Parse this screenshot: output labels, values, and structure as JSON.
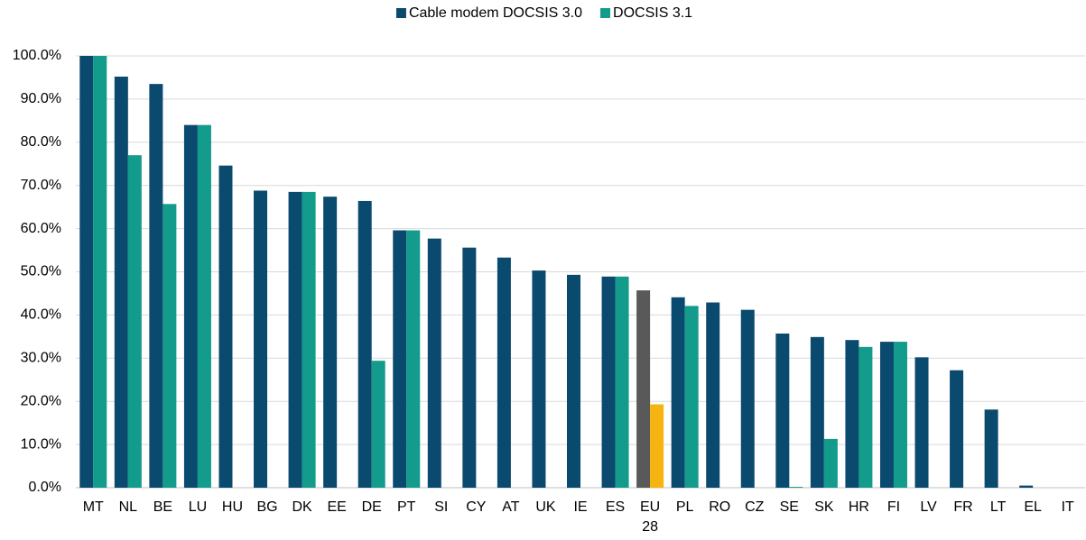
{
  "chart_data": {
    "type": "bar",
    "categories": [
      "MT",
      "NL",
      "BE",
      "LU",
      "HU",
      "BG",
      "DK",
      "EE",
      "DE",
      "PT",
      "SI",
      "CY",
      "AT",
      "UK",
      "IE",
      "ES",
      "EU 28",
      "PL",
      "RO",
      "CZ",
      "SE",
      "SK",
      "HR",
      "FI",
      "LV",
      "FR",
      "LT",
      "EL",
      "IT"
    ],
    "series": [
      {
        "name": "Cable modem DOCSIS 3.0",
        "color": "#0b4a6f",
        "colors": [
          "#0b4a6f",
          "#0b4a6f",
          "#0b4a6f",
          "#0b4a6f",
          "#0b4a6f",
          "#0b4a6f",
          "#0b4a6f",
          "#0b4a6f",
          "#0b4a6f",
          "#0b4a6f",
          "#0b4a6f",
          "#0b4a6f",
          "#0b4a6f",
          "#0b4a6f",
          "#0b4a6f",
          "#0b4a6f",
          "#595959",
          "#0b4a6f",
          "#0b4a6f",
          "#0b4a6f",
          "#0b4a6f",
          "#0b4a6f",
          "#0b4a6f",
          "#0b4a6f",
          "#0b4a6f",
          "#0b4a6f",
          "#0b4a6f",
          "#0b4a6f",
          "#0b4a6f"
        ],
        "values": [
          100,
          95.2,
          93.5,
          84,
          74.6,
          68.8,
          68.5,
          67.4,
          66.4,
          59.6,
          57.7,
          55.6,
          53.3,
          50.3,
          49.3,
          48.9,
          45.7,
          44.1,
          42.9,
          41.2,
          35.7,
          34.9,
          34.2,
          33.8,
          30.2,
          27.2,
          18.1,
          0.5,
          0
        ]
      },
      {
        "name": "DOCSIS 3.1",
        "color": "#139b8b",
        "colors": [
          "#139b8b",
          "#139b8b",
          "#139b8b",
          "#139b8b",
          "#139b8b",
          "#139b8b",
          "#139b8b",
          "#139b8b",
          "#139b8b",
          "#139b8b",
          "#139b8b",
          "#139b8b",
          "#139b8b",
          "#139b8b",
          "#139b8b",
          "#139b8b",
          "#f5b40f",
          "#139b8b",
          "#139b8b",
          "#139b8b",
          "#139b8b",
          "#139b8b",
          "#139b8b",
          "#139b8b",
          "#139b8b",
          "#139b8b",
          "#139b8b",
          "#139b8b",
          "#139b8b"
        ],
        "values": [
          100,
          77,
          65.7,
          84,
          0,
          0,
          68.5,
          0,
          29.4,
          59.6,
          0,
          0,
          0,
          0,
          0,
          48.9,
          19.3,
          42.1,
          0,
          0,
          0.2,
          11.3,
          32.6,
          33.8,
          0,
          0,
          0,
          0,
          0
        ]
      }
    ],
    "ylim": [
      0,
      100
    ],
    "yticks": [
      {
        "value": 0,
        "label": "0.0%"
      },
      {
        "value": 10,
        "label": "10.0%"
      },
      {
        "value": 20,
        "label": "20.0%"
      },
      {
        "value": 30,
        "label": "30.0%"
      },
      {
        "value": 40,
        "label": "40.0%"
      },
      {
        "value": 50,
        "label": "50.0%"
      },
      {
        "value": 60,
        "label": "60.0%"
      },
      {
        "value": 70,
        "label": "70.0%"
      },
      {
        "value": 80,
        "label": "80.0%"
      },
      {
        "value": 90,
        "label": "90.0%"
      },
      {
        "value": 100,
        "label": "100.0%"
      }
    ],
    "grid": true,
    "legend": "top"
  }
}
